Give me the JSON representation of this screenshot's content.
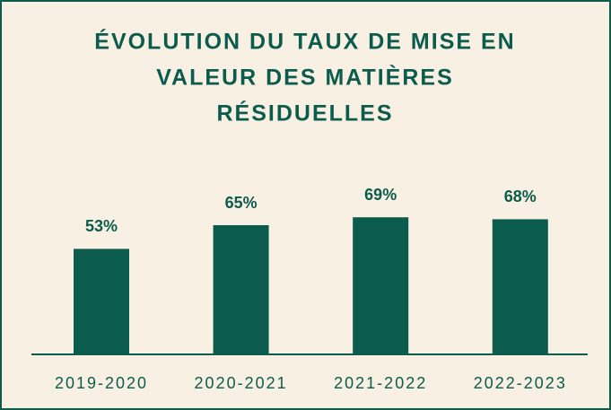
{
  "chart_data": {
    "type": "bar",
    "title": [
      "ÉVOLUTION DU TAUX DE MISE EN",
      "VALEUR DES MATIÈRES",
      "RÉSIDUELLES"
    ],
    "categories": [
      "2019-2020",
      "2020-2021",
      "2021-2022",
      "2022-2023"
    ],
    "values": [
      53,
      65,
      69,
      68
    ],
    "value_labels": [
      "53%",
      "65%",
      "69%",
      "68%"
    ],
    "color": "#0b5c4c"
  }
}
